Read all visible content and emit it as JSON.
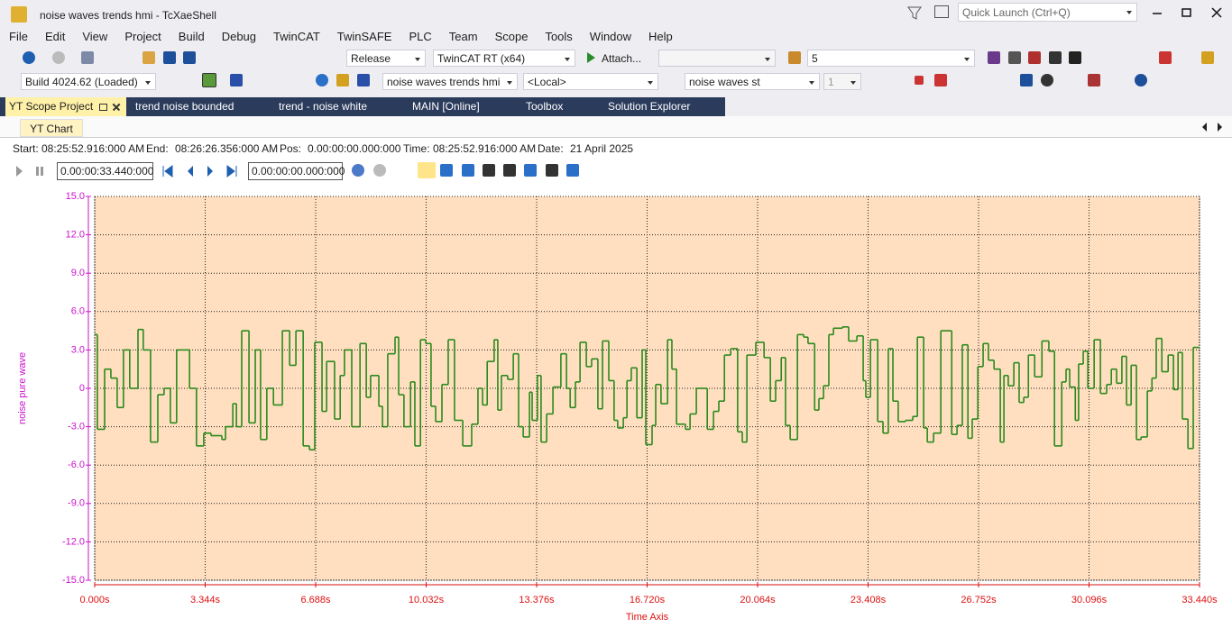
{
  "window": {
    "title": "noise waves trends hmi - TcXaeShell",
    "quick_launch": "Quick Launch (Ctrl+Q)"
  },
  "menu": [
    "File",
    "Edit",
    "View",
    "Project",
    "Build",
    "Debug",
    "TwinCAT",
    "TwinSAFE",
    "PLC",
    "Team",
    "Scope",
    "Tools",
    "Window",
    "Help"
  ],
  "toolbar": {
    "configuration": "Release",
    "platform": "TwinCAT RT (x64)",
    "attach": "Attach...",
    "count": "5",
    "build": "Build 4024.62 (Loaded)",
    "project": "noise waves trends hmi",
    "target": "<Local>",
    "task": "noise waves st",
    "index": "1"
  },
  "tabs": [
    "YT Scope Project",
    "trend noise bounded",
    "trend - noise white",
    "MAIN [Online]",
    "Toolbox",
    "Solution Explorer"
  ],
  "subtab": "YT Chart",
  "info": [
    {
      "label": "Start:",
      "value": "08:25:52.916:000 AM"
    },
    {
      "label": "End:",
      "value": "08:26:26.356:000 AM"
    },
    {
      "label": "Pos:",
      "value": "0.00:00:00.000:000"
    },
    {
      "label": "Time:",
      "value": "08:25:52.916:000 AM"
    },
    {
      "label": "Date:",
      "value": "21 April 2025"
    }
  ],
  "timespan": "0.00:00:33.440:000",
  "position": "0.00:00:00.000:000",
  "chart_data": {
    "type": "line",
    "step": true,
    "y_label": "noise pure wave",
    "x_label": "Time Axis",
    "color": "#2a8a1e",
    "background": "#ffdfbf",
    "y_axis_color": "#cc11cc",
    "x_axis_color": "#dd1111",
    "grid": true,
    "xlim": [
      0,
      33.44
    ],
    "ylim": [
      -15,
      15
    ],
    "xticks": [
      {
        "value": 0,
        "label": "0.000s"
      },
      {
        "value": 3.344,
        "label": "3.344s"
      },
      {
        "value": 6.688,
        "label": "6.688s"
      },
      {
        "value": 10.032,
        "label": "10.032s"
      },
      {
        "value": 13.376,
        "label": "13.376s"
      },
      {
        "value": 16.72,
        "label": "16.720s"
      },
      {
        "value": 20.064,
        "label": "20.064s"
      },
      {
        "value": 23.408,
        "label": "23.408s"
      },
      {
        "value": 26.752,
        "label": "26.752s"
      },
      {
        "value": 30.096,
        "label": "30.096s"
      },
      {
        "value": 33.44,
        "label": "33.440s"
      }
    ],
    "yticks": [
      {
        "value": 15,
        "label": "15.0"
      },
      {
        "value": 12,
        "label": "12.0"
      },
      {
        "value": 9,
        "label": "9.0"
      },
      {
        "value": 6,
        "label": "6.0"
      },
      {
        "value": 3,
        "label": "3.0"
      },
      0,
      {
        "value": -3,
        "label": "-3.0"
      },
      {
        "value": -6,
        "label": "-6.0"
      },
      {
        "value": -9,
        "label": "-9.0"
      },
      {
        "value": -12,
        "label": "-12.0"
      },
      {
        "value": -15,
        "label": "-15.0"
      }
    ],
    "x": [
      0,
      0.08,
      0.3,
      0.49,
      0.68,
      0.87,
      1.06,
      1.31,
      1.47,
      1.69,
      1.91,
      2.1,
      2.29,
      2.48,
      2.87,
      3.08,
      3.3,
      3.52,
      3.85,
      3.96,
      4.18,
      4.29,
      4.45,
      4.67,
      4.86,
      5.02,
      5.21,
      5.41,
      5.68,
      5.9,
      6.09,
      6.31,
      6.5,
      6.66,
      6.88,
      7.02,
      7.26,
      7.43,
      7.56,
      7.78,
      8.03,
      8.22,
      8.35,
      8.6,
      8.71,
      8.87,
      9.09,
      9.2,
      9.36,
      9.56,
      9.69,
      9.86,
      10.02,
      10.18,
      10.32,
      10.51,
      10.7,
      10.89,
      11.14,
      11.41,
      11.6,
      11.74,
      11.88,
      12.09,
      12.2,
      12.31,
      12.5,
      12.67,
      12.83,
      12.97,
      13.16,
      13.24,
      13.4,
      13.51,
      13.68,
      13.87,
      14.11,
      14.28,
      14.39,
      14.55,
      14.69,
      14.88,
      15.04,
      15.23,
      15.37,
      15.56,
      15.72,
      15.83,
      16.0,
      16.11,
      16.24,
      16.41,
      16.57,
      16.68,
      16.87,
      16.98,
      17.14,
      17.34,
      17.47,
      17.61,
      17.88,
      18.02,
      18.21,
      18.43,
      18.54,
      18.73,
      18.89,
      19.06,
      19.25,
      19.46,
      19.6,
      19.74,
      20.01,
      20.26,
      20.45,
      20.61,
      20.78,
      20.91,
      21.05,
      21.27,
      21.46,
      21.59,
      21.79,
      21.92,
      22.06,
      22.22,
      22.36,
      22.63,
      22.82,
      23.07,
      23.26,
      23.34,
      23.48,
      23.7,
      23.86,
      24.02,
      24.16,
      24.32,
      24.54,
      24.76,
      24.9,
      25.09,
      25.2,
      25.39,
      25.61,
      25.94,
      26.1,
      26.26,
      26.43,
      26.56,
      26.73,
      26.89,
      27.05,
      27.22,
      27.41,
      27.52,
      27.65,
      27.82,
      27.98,
      28.12,
      28.26,
      28.45,
      28.67,
      28.88,
      29.05,
      29.27,
      29.4,
      29.51,
      29.68,
      29.78,
      29.92,
      30.06,
      30.25,
      30.44,
      30.63,
      30.77,
      30.93,
      31.09,
      31.23,
      31.37,
      31.53,
      31.67,
      31.86,
      32.0,
      32.13,
      32.3,
      32.49,
      32.65,
      32.79,
      32.92,
      33.09,
      33.25,
      33.39
    ],
    "values": [
      4.2,
      -3.2,
      1.5,
      0.8,
      -1.5,
      3.0,
      0,
      4.6,
      3.0,
      -4.2,
      -0.5,
      0,
      -2.7,
      3.0,
      0,
      -4.5,
      -3.5,
      -3.7,
      -4.0,
      -3.0,
      -1.2,
      -3.0,
      4.5,
      -2.7,
      3.0,
      -4.0,
      0,
      -1.3,
      4.5,
      1.8,
      4.5,
      -4.5,
      -4.8,
      3.6,
      -1.8,
      2.1,
      -2.4,
      1.0,
      3.0,
      -3.0,
      3.5,
      -0.7,
      1.0,
      -1.4,
      -3.0,
      2.7,
      4.0,
      -0.5,
      -3.0,
      0.5,
      -4.5,
      3.8,
      3.5,
      -1.4,
      -2.6,
      0.3,
      3.8,
      -2.5,
      -4.5,
      -2.8,
      0,
      -1.3,
      2.1,
      3.8,
      -1.7,
      1.0,
      0.7,
      2.7,
      -3.0,
      -3.8,
      -0.3,
      -2.5,
      1.0,
      -4.2,
      -2.0,
      0.1,
      2.7,
      0,
      -1.5,
      0.5,
      3.6,
      1.7,
      2.3,
      -1.6,
      3.7,
      0.6,
      -2.5,
      -3.1,
      -2.3,
      0.6,
      1.6,
      -2.3,
      3.0,
      -4.4,
      -2.9,
      0.3,
      -1.2,
      3.8,
      1.5,
      -2.8,
      -3.2,
      -2.0,
      0,
      0,
      -3.2,
      -1.8,
      -1.0,
      2.6,
      3.1,
      -3.4,
      -4.2,
      2.6,
      3.6,
      2.4,
      -1.0,
      0.6,
      2.4,
      -2.9,
      -4.0,
      4.2,
      4.0,
      3.5,
      -1.7,
      -0.8,
      0.2,
      4.2,
      4.7,
      4.8,
      3.7,
      4.1,
      0.6,
      -0.7,
      3.8,
      -2.6,
      -3.5,
      3.1,
      -1.0,
      -2.6,
      -2.5,
      -2.2,
      4.0,
      -3.1,
      -4.2,
      -3.5,
      4.5,
      -3.6,
      -2.9,
      3.4,
      -3.9,
      -2.4,
      1.7,
      3.5,
      2.2,
      1.5,
      -4.2,
      1.0,
      0.2,
      2.0,
      -1.1,
      -0.7,
      2.6,
      0.9,
      3.7,
      2.9,
      -4.5,
      0.5,
      1.5,
      0.1,
      -2.5,
      1.9,
      2.9,
      0,
      3.8,
      -0.4,
      0.3,
      1.5,
      0.4,
      2.5,
      -1.3,
      1.8,
      -4.0,
      -3.8,
      -0.2,
      0.8,
      3.9,
      1.3,
      2.6,
      -0.1,
      2.8,
      -2.4,
      -4.7,
      3.2,
      3.2
    ]
  }
}
